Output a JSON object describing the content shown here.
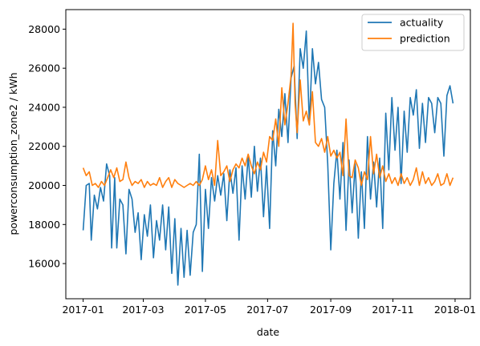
{
  "chart_data": {
    "type": "line",
    "title": "",
    "xlabel": "date",
    "ylabel": "powerconsumption_zone2 / kWh",
    "x_range": [
      "2016-12-15",
      "2018-01-16"
    ],
    "ylim": [
      14200,
      29000
    ],
    "x_ticks": [
      {
        "date": "2017-01-01",
        "label": "2017-01"
      },
      {
        "date": "2017-03-01",
        "label": "2017-03"
      },
      {
        "date": "2017-05-01",
        "label": "2017-05"
      },
      {
        "date": "2017-07-01",
        "label": "2017-07"
      },
      {
        "date": "2017-09-01",
        "label": "2017-09"
      },
      {
        "date": "2017-11-01",
        "label": "2017-11"
      },
      {
        "date": "2018-01-01",
        "label": "2018-01"
      }
    ],
    "y_ticks": [
      16000,
      18000,
      20000,
      22000,
      24000,
      26000,
      28000
    ],
    "grid": false,
    "legend_position": "top-right",
    "series": [
      {
        "name": "actuality",
        "color": "#1f77b4",
        "points": [
          [
            "2017-01-01",
            17700
          ],
          [
            "2017-01-04",
            20000
          ],
          [
            "2017-01-07",
            20100
          ],
          [
            "2017-01-09",
            17200
          ],
          [
            "2017-01-12",
            19500
          ],
          [
            "2017-01-15",
            18800
          ],
          [
            "2017-01-18",
            19900
          ],
          [
            "2017-01-21",
            19200
          ],
          [
            "2017-01-24",
            21100
          ],
          [
            "2017-01-27",
            20500
          ],
          [
            "2017-01-29",
            16800
          ],
          [
            "2017-02-01",
            20400
          ],
          [
            "2017-02-03",
            16800
          ],
          [
            "2017-02-06",
            19300
          ],
          [
            "2017-02-09",
            19000
          ],
          [
            "2017-02-12",
            16500
          ],
          [
            "2017-02-15",
            19800
          ],
          [
            "2017-02-18",
            19300
          ],
          [
            "2017-02-21",
            17600
          ],
          [
            "2017-02-24",
            18600
          ],
          [
            "2017-02-27",
            16200
          ],
          [
            "2017-03-02",
            18500
          ],
          [
            "2017-03-05",
            17400
          ],
          [
            "2017-03-08",
            19000
          ],
          [
            "2017-03-11",
            16300
          ],
          [
            "2017-03-14",
            18200
          ],
          [
            "2017-03-17",
            17200
          ],
          [
            "2017-03-20",
            19000
          ],
          [
            "2017-03-23",
            16700
          ],
          [
            "2017-03-26",
            18900
          ],
          [
            "2017-03-29",
            15500
          ],
          [
            "2017-04-01",
            18300
          ],
          [
            "2017-04-04",
            14900
          ],
          [
            "2017-04-07",
            17800
          ],
          [
            "2017-04-10",
            15300
          ],
          [
            "2017-04-13",
            17700
          ],
          [
            "2017-04-16",
            15400
          ],
          [
            "2017-04-19",
            17600
          ],
          [
            "2017-04-22",
            18000
          ],
          [
            "2017-04-25",
            21600
          ],
          [
            "2017-04-28",
            15600
          ],
          [
            "2017-05-01",
            19800
          ],
          [
            "2017-05-04",
            17800
          ],
          [
            "2017-05-07",
            20400
          ],
          [
            "2017-05-10",
            19200
          ],
          [
            "2017-05-13",
            20500
          ],
          [
            "2017-05-16",
            19500
          ],
          [
            "2017-05-19",
            20600
          ],
          [
            "2017-05-22",
            18200
          ],
          [
            "2017-05-25",
            20800
          ],
          [
            "2017-05-28",
            19600
          ],
          [
            "2017-05-31",
            20900
          ],
          [
            "2017-06-03",
            17200
          ],
          [
            "2017-06-06",
            21000
          ],
          [
            "2017-06-09",
            19300
          ],
          [
            "2017-06-12",
            21500
          ],
          [
            "2017-06-15",
            19400
          ],
          [
            "2017-06-18",
            22000
          ],
          [
            "2017-06-21",
            19700
          ],
          [
            "2017-06-24",
            21400
          ],
          [
            "2017-06-27",
            18400
          ],
          [
            "2017-06-30",
            21000
          ],
          [
            "2017-07-03",
            17800
          ],
          [
            "2017-07-06",
            22800
          ],
          [
            "2017-07-09",
            21000
          ],
          [
            "2017-07-12",
            23900
          ],
          [
            "2017-07-15",
            22500
          ],
          [
            "2017-07-18",
            24700
          ],
          [
            "2017-07-21",
            22200
          ],
          [
            "2017-07-24",
            25500
          ],
          [
            "2017-07-27",
            26100
          ],
          [
            "2017-07-30",
            22400
          ],
          [
            "2017-08-02",
            27000
          ],
          [
            "2017-08-05",
            26000
          ],
          [
            "2017-08-08",
            27900
          ],
          [
            "2017-08-11",
            23100
          ],
          [
            "2017-08-14",
            27000
          ],
          [
            "2017-08-17",
            25200
          ],
          [
            "2017-08-20",
            26300
          ],
          [
            "2017-08-23",
            24400
          ],
          [
            "2017-08-26",
            24000
          ],
          [
            "2017-08-29",
            21100
          ],
          [
            "2017-09-01",
            16700
          ],
          [
            "2017-09-04",
            20100
          ],
          [
            "2017-09-07",
            21800
          ],
          [
            "2017-09-10",
            19300
          ],
          [
            "2017-09-13",
            22200
          ],
          [
            "2017-09-16",
            17700
          ],
          [
            "2017-09-19",
            21300
          ],
          [
            "2017-09-22",
            18600
          ],
          [
            "2017-09-25",
            21100
          ],
          [
            "2017-09-28",
            17300
          ],
          [
            "2017-10-01",
            20700
          ],
          [
            "2017-10-04",
            17800
          ],
          [
            "2017-10-07",
            22500
          ],
          [
            "2017-10-10",
            19300
          ],
          [
            "2017-10-13",
            21200
          ],
          [
            "2017-10-16",
            18900
          ],
          [
            "2017-10-19",
            21400
          ],
          [
            "2017-10-22",
            17800
          ],
          [
            "2017-10-25",
            23700
          ],
          [
            "2017-10-28",
            20800
          ],
          [
            "2017-10-31",
            24500
          ],
          [
            "2017-11-03",
            21800
          ],
          [
            "2017-11-06",
            24000
          ],
          [
            "2017-11-09",
            20100
          ],
          [
            "2017-11-12",
            23800
          ],
          [
            "2017-11-15",
            21700
          ],
          [
            "2017-11-18",
            24500
          ],
          [
            "2017-11-21",
            23600
          ],
          [
            "2017-11-24",
            24900
          ],
          [
            "2017-11-27",
            21900
          ],
          [
            "2017-11-30",
            24200
          ],
          [
            "2017-12-03",
            22200
          ],
          [
            "2017-12-06",
            24500
          ],
          [
            "2017-12-09",
            24200
          ],
          [
            "2017-12-12",
            22700
          ],
          [
            "2017-12-15",
            24500
          ],
          [
            "2017-12-18",
            24200
          ],
          [
            "2017-12-21",
            21500
          ],
          [
            "2017-12-24",
            24600
          ],
          [
            "2017-12-27",
            25100
          ],
          [
            "2017-12-30",
            24200
          ]
        ]
      },
      {
        "name": "prediction",
        "color": "#ff7f0e",
        "points": [
          [
            "2017-01-01",
            20900
          ],
          [
            "2017-01-04",
            20500
          ],
          [
            "2017-01-07",
            20700
          ],
          [
            "2017-01-10",
            20000
          ],
          [
            "2017-01-13",
            20100
          ],
          [
            "2017-01-16",
            19900
          ],
          [
            "2017-01-19",
            20200
          ],
          [
            "2017-01-22",
            20000
          ],
          [
            "2017-01-25",
            20400
          ],
          [
            "2017-01-28",
            20800
          ],
          [
            "2017-01-31",
            20400
          ],
          [
            "2017-02-03",
            20900
          ],
          [
            "2017-02-06",
            20200
          ],
          [
            "2017-02-09",
            20300
          ],
          [
            "2017-02-12",
            21200
          ],
          [
            "2017-02-15",
            20400
          ],
          [
            "2017-02-18",
            20000
          ],
          [
            "2017-02-21",
            20200
          ],
          [
            "2017-02-24",
            20100
          ],
          [
            "2017-02-27",
            20300
          ],
          [
            "2017-03-02",
            19900
          ],
          [
            "2017-03-05",
            20200
          ],
          [
            "2017-03-08",
            20000
          ],
          [
            "2017-03-11",
            20100
          ],
          [
            "2017-03-14",
            20000
          ],
          [
            "2017-03-17",
            20400
          ],
          [
            "2017-03-20",
            19900
          ],
          [
            "2017-03-23",
            20200
          ],
          [
            "2017-03-26",
            20400
          ],
          [
            "2017-03-29",
            19900
          ],
          [
            "2017-04-01",
            20300
          ],
          [
            "2017-04-04",
            20100
          ],
          [
            "2017-04-07",
            20000
          ],
          [
            "2017-04-10",
            19900
          ],
          [
            "2017-04-13",
            20000
          ],
          [
            "2017-04-16",
            20100
          ],
          [
            "2017-04-19",
            20000
          ],
          [
            "2017-04-22",
            20200
          ],
          [
            "2017-04-25",
            20000
          ],
          [
            "2017-04-28",
            20300
          ],
          [
            "2017-05-01",
            21000
          ],
          [
            "2017-05-04",
            20300
          ],
          [
            "2017-05-07",
            20800
          ],
          [
            "2017-05-10",
            20000
          ],
          [
            "2017-05-13",
            22300
          ],
          [
            "2017-05-16",
            20500
          ],
          [
            "2017-05-19",
            20700
          ],
          [
            "2017-05-22",
            21000
          ],
          [
            "2017-05-25",
            20200
          ],
          [
            "2017-05-28",
            20800
          ],
          [
            "2017-05-31",
            21100
          ],
          [
            "2017-06-03",
            20900
          ],
          [
            "2017-06-06",
            21400
          ],
          [
            "2017-06-09",
            21000
          ],
          [
            "2017-06-12",
            21600
          ],
          [
            "2017-06-15",
            21000
          ],
          [
            "2017-06-18",
            20600
          ],
          [
            "2017-06-21",
            21200
          ],
          [
            "2017-06-24",
            20800
          ],
          [
            "2017-06-27",
            21700
          ],
          [
            "2017-06-30",
            21200
          ],
          [
            "2017-07-03",
            22500
          ],
          [
            "2017-07-06",
            22300
          ],
          [
            "2017-07-09",
            23400
          ],
          [
            "2017-07-12",
            22000
          ],
          [
            "2017-07-15",
            25000
          ],
          [
            "2017-07-18",
            23100
          ],
          [
            "2017-07-21",
            24200
          ],
          [
            "2017-07-24",
            25600
          ],
          [
            "2017-07-26",
            28300
          ],
          [
            "2017-07-28",
            24200
          ],
          [
            "2017-07-30",
            22700
          ],
          [
            "2017-08-02",
            25400
          ],
          [
            "2017-08-05",
            23300
          ],
          [
            "2017-08-08",
            23800
          ],
          [
            "2017-08-11",
            23100
          ],
          [
            "2017-08-14",
            24800
          ],
          [
            "2017-08-17",
            22200
          ],
          [
            "2017-08-20",
            22000
          ],
          [
            "2017-08-23",
            22400
          ],
          [
            "2017-08-26",
            21700
          ],
          [
            "2017-08-29",
            22500
          ],
          [
            "2017-09-01",
            21500
          ],
          [
            "2017-09-04",
            21800
          ],
          [
            "2017-09-07",
            21400
          ],
          [
            "2017-09-10",
            21700
          ],
          [
            "2017-09-13",
            20500
          ],
          [
            "2017-09-16",
            23400
          ],
          [
            "2017-09-19",
            20500
          ],
          [
            "2017-09-22",
            20400
          ],
          [
            "2017-09-25",
            21300
          ],
          [
            "2017-09-28",
            20900
          ],
          [
            "2017-10-01",
            20000
          ],
          [
            "2017-10-04",
            20700
          ],
          [
            "2017-10-07",
            20300
          ],
          [
            "2017-10-10",
            22500
          ],
          [
            "2017-10-13",
            20600
          ],
          [
            "2017-10-16",
            21600
          ],
          [
            "2017-10-19",
            20400
          ],
          [
            "2017-10-22",
            21000
          ],
          [
            "2017-10-25",
            20200
          ],
          [
            "2017-10-28",
            20600
          ],
          [
            "2017-10-31",
            20100
          ],
          [
            "2017-11-03",
            20400
          ],
          [
            "2017-11-06",
            20000
          ],
          [
            "2017-11-09",
            20600
          ],
          [
            "2017-11-12",
            20100
          ],
          [
            "2017-11-15",
            20400
          ],
          [
            "2017-11-18",
            20000
          ],
          [
            "2017-11-21",
            20300
          ],
          [
            "2017-11-24",
            20900
          ],
          [
            "2017-11-27",
            20000
          ],
          [
            "2017-11-30",
            20700
          ],
          [
            "2017-12-03",
            20100
          ],
          [
            "2017-12-06",
            20400
          ],
          [
            "2017-12-09",
            20000
          ],
          [
            "2017-12-12",
            20200
          ],
          [
            "2017-12-15",
            20600
          ],
          [
            "2017-12-18",
            20000
          ],
          [
            "2017-12-21",
            20100
          ],
          [
            "2017-12-24",
            20600
          ],
          [
            "2017-12-27",
            20000
          ],
          [
            "2017-12-30",
            20400
          ]
        ]
      }
    ]
  }
}
